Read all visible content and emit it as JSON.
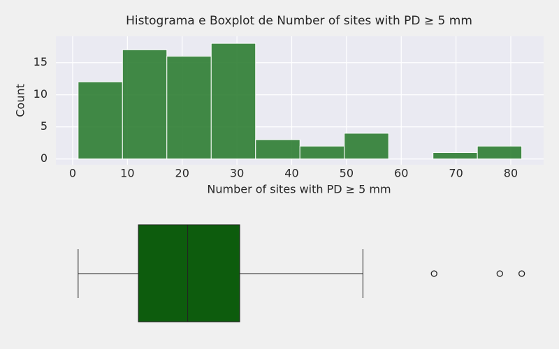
{
  "chart_data": [
    {
      "type": "histogram",
      "title": "Histograma e Boxplot de Number of sites with PD ≥ 5 mm",
      "x_label": "Number of sites with PD ≥ 5 mm",
      "y_label": "Count",
      "bins": [
        1,
        9.1,
        17.2,
        25.3,
        33.4,
        41.5,
        49.6,
        57.7,
        65.8,
        73.9,
        82
      ],
      "values": [
        12,
        17,
        16,
        18,
        3,
        2,
        4,
        0,
        1,
        2
      ],
      "color": "#2e7d32",
      "xlim": [
        -3.06,
        86
      ],
      "ylim": [
        -0.9,
        19.1
      ],
      "xticks": [
        0,
        10,
        20,
        30,
        40,
        50,
        60,
        70,
        80
      ],
      "yticks": [
        0,
        5,
        10,
        15
      ],
      "grid": true
    },
    {
      "type": "box",
      "whislo": 1,
      "q1": 12,
      "median": 21,
      "q3": 30.5,
      "whishi": 53,
      "fliers": [
        66,
        78,
        82
      ],
      "color": "#0d5c0d",
      "xlim": [
        -3.06,
        86
      ]
    }
  ]
}
